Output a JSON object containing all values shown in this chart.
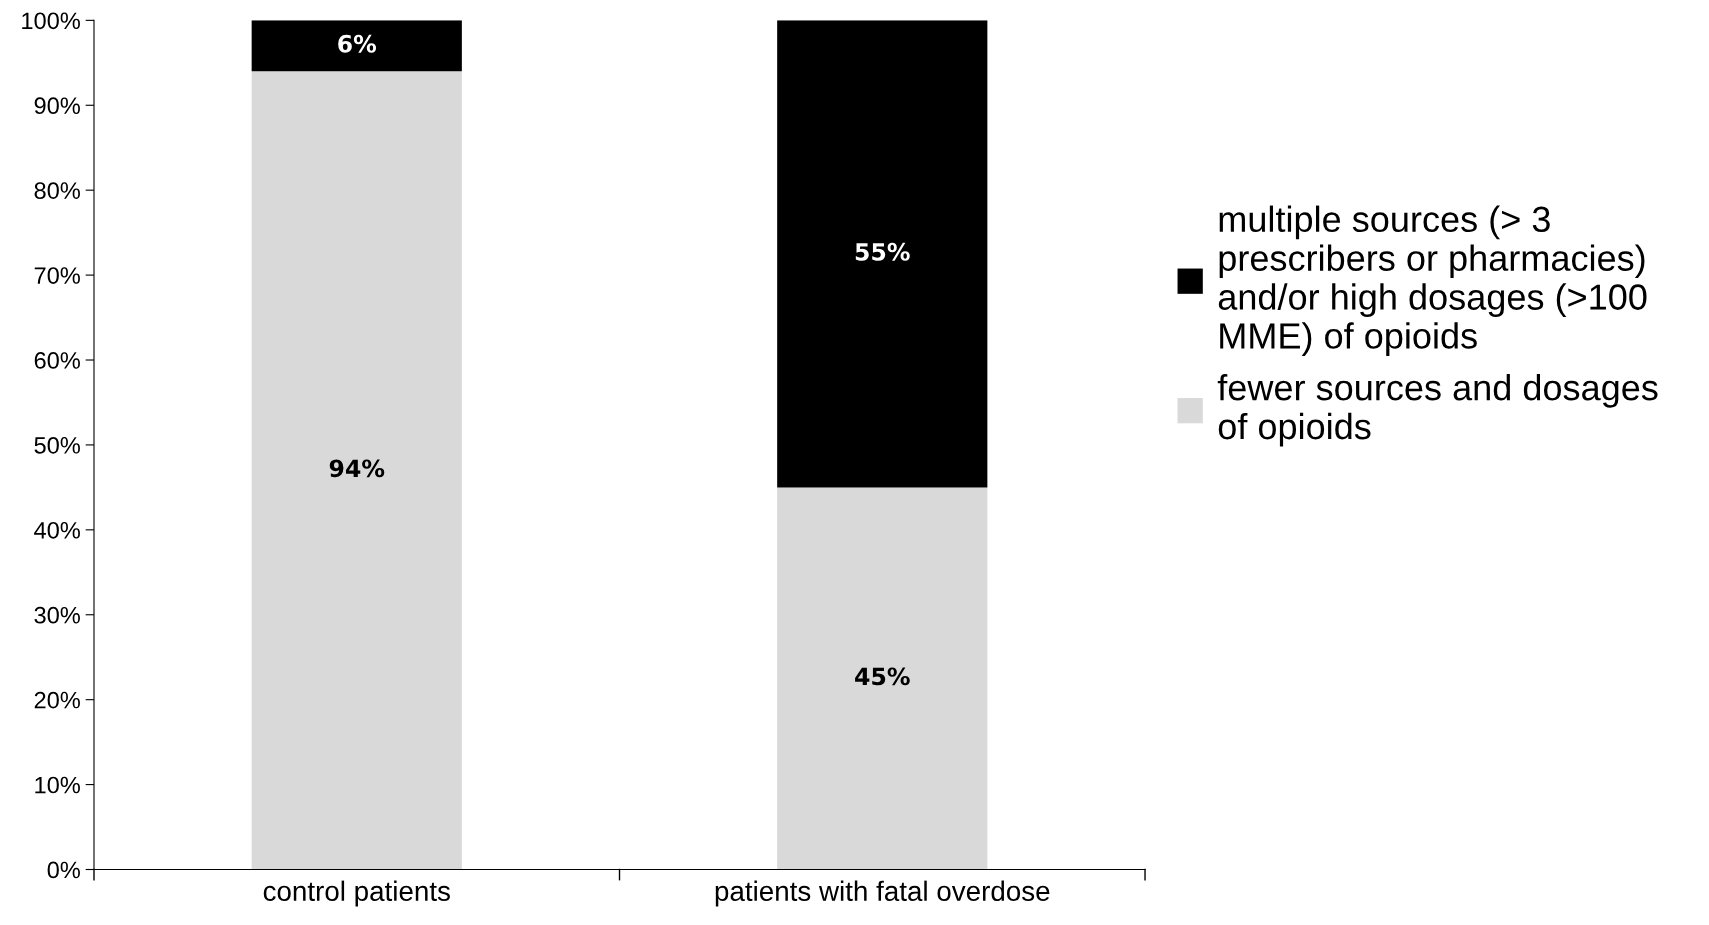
{
  "chart_data": {
    "type": "bar",
    "stacked": true,
    "categories": [
      "control patients",
      "patients with fatal overdose"
    ],
    "series": [
      {
        "name": "fewer sources and dosages\nof opioids",
        "color": "#d9d9d9",
        "values": [
          94,
          45
        ],
        "value_labels": [
          "94%",
          "45%"
        ]
      },
      {
        "name": "multiple sources (> 3\nprescribers or pharmacies)\nand/or high dosages (>100\nMME) of opioids",
        "color": "#000000",
        "values": [
          6,
          55
        ],
        "value_labels": [
          "6%",
          "55%"
        ]
      }
    ],
    "ylim": [
      0,
      100
    ],
    "yticks": [
      {
        "value": 0,
        "label": "0%"
      },
      {
        "value": 10,
        "label": "10%"
      },
      {
        "value": 20,
        "label": "20%"
      },
      {
        "value": 30,
        "label": "30%"
      },
      {
        "value": 40,
        "label": "40%"
      },
      {
        "value": 50,
        "label": "50%"
      },
      {
        "value": 60,
        "label": "60%"
      },
      {
        "value": 70,
        "label": "70%"
      },
      {
        "value": 80,
        "label": "80%"
      },
      {
        "value": 90,
        "label": "90%"
      },
      {
        "value": 100,
        "label": "100%"
      }
    ],
    "grid": false,
    "legend": "right"
  }
}
